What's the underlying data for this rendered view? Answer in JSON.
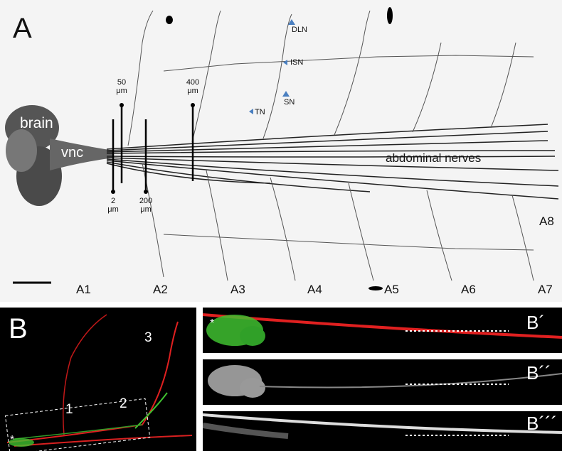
{
  "panel_a": {
    "letter": "A",
    "brain": "brain",
    "vnc": "vnc",
    "nerves": "abdominal nerves",
    "markers": {
      "dln": "DLN",
      "isn": "ISN",
      "sn": "SN",
      "tn": "TN"
    },
    "distances": {
      "d50": "50",
      "d400": "400",
      "d2": "2",
      "d200": "200",
      "unit": "μm"
    },
    "segments": [
      "A1",
      "A2",
      "A3",
      "A4",
      "A5",
      "A6",
      "A7",
      "A8"
    ],
    "arrow_color": "#4a7fc0"
  },
  "panel_b": {
    "letter": "B",
    "numbers": [
      "1",
      "2",
      "3"
    ],
    "asterisk": "*"
  },
  "strips": {
    "b1": "B´",
    "b2": "B´´",
    "b3": "B´´´",
    "asterisk": "*"
  },
  "colors": {
    "red_channel": "#e02020",
    "green_channel": "#40c030"
  }
}
